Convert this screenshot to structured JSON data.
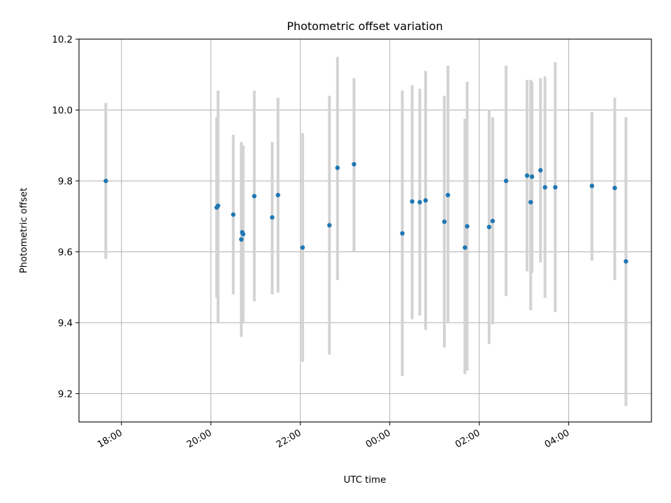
{
  "chart_data": {
    "type": "scatter",
    "title": "Photometric offset variation",
    "xlabel": "UTC time",
    "ylabel": "Photometric offset",
    "xlim_hours": [
      17.05,
      29.85
    ],
    "ylim": [
      9.12,
      10.2
    ],
    "grid": true,
    "x_ticks": [
      {
        "hours": 18,
        "label": "18:00"
      },
      {
        "hours": 20,
        "label": "20:00"
      },
      {
        "hours": 22,
        "label": "22:00"
      },
      {
        "hours": 24,
        "label": "00:00"
      },
      {
        "hours": 26,
        "label": "02:00"
      },
      {
        "hours": 28,
        "label": "04:00"
      }
    ],
    "y_ticks": [
      {
        "value": 9.2,
        "label": "9.2"
      },
      {
        "value": 9.4,
        "label": "9.4"
      },
      {
        "value": 9.6,
        "label": "9.6"
      },
      {
        "value": 9.8,
        "label": "9.8"
      },
      {
        "value": 10.0,
        "label": "10.0"
      },
      {
        "value": 10.2,
        "label": "10.2"
      }
    ],
    "colors": {
      "point": "#1f77b4",
      "errorbar": "#d3d3d3",
      "grid": "#b0b0b0"
    },
    "points": [
      {
        "x": 17.65,
        "y": 9.8,
        "lo": 9.58,
        "hi": 10.02
      },
      {
        "x": 20.13,
        "y": 9.725,
        "lo": 9.47,
        "hi": 9.98
      },
      {
        "x": 20.16,
        "y": 9.73,
        "lo": 9.4,
        "hi": 10.055
      },
      {
        "x": 20.5,
        "y": 9.705,
        "lo": 9.48,
        "hi": 9.93
      },
      {
        "x": 20.68,
        "y": 9.635,
        "lo": 9.36,
        "hi": 9.91
      },
      {
        "x": 20.7,
        "y": 9.655,
        "lo": 9.42,
        "hi": 9.885
      },
      {
        "x": 20.72,
        "y": 9.65,
        "lo": 9.4,
        "hi": 9.9
      },
      {
        "x": 20.97,
        "y": 9.757,
        "lo": 9.46,
        "hi": 10.055
      },
      {
        "x": 21.37,
        "y": 9.697,
        "lo": 9.48,
        "hi": 9.91
      },
      {
        "x": 21.5,
        "y": 9.76,
        "lo": 9.485,
        "hi": 10.035
      },
      {
        "x": 22.05,
        "y": 9.612,
        "lo": 9.29,
        "hi": 9.935
      },
      {
        "x": 22.65,
        "y": 9.675,
        "lo": 9.31,
        "hi": 10.04
      },
      {
        "x": 22.83,
        "y": 9.837,
        "lo": 9.52,
        "hi": 10.15
      },
      {
        "x": 23.2,
        "y": 9.847,
        "lo": 9.6,
        "hi": 10.09
      },
      {
        "x": 24.28,
        "y": 9.652,
        "lo": 9.25,
        "hi": 10.055
      },
      {
        "x": 24.5,
        "y": 9.742,
        "lo": 9.41,
        "hi": 10.07
      },
      {
        "x": 24.67,
        "y": 9.74,
        "lo": 9.42,
        "hi": 10.06
      },
      {
        "x": 24.8,
        "y": 9.745,
        "lo": 9.38,
        "hi": 10.11
      },
      {
        "x": 25.22,
        "y": 9.685,
        "lo": 9.33,
        "hi": 10.04
      },
      {
        "x": 25.3,
        "y": 9.76,
        "lo": 9.4,
        "hi": 10.125
      },
      {
        "x": 25.68,
        "y": 9.612,
        "lo": 9.255,
        "hi": 9.975
      },
      {
        "x": 25.73,
        "y": 9.672,
        "lo": 9.265,
        "hi": 10.08
      },
      {
        "x": 26.22,
        "y": 9.67,
        "lo": 9.34,
        "hi": 10.0
      },
      {
        "x": 26.3,
        "y": 9.687,
        "lo": 9.395,
        "hi": 9.98
      },
      {
        "x": 26.6,
        "y": 9.8,
        "lo": 9.475,
        "hi": 10.125
      },
      {
        "x": 27.07,
        "y": 9.815,
        "lo": 9.545,
        "hi": 10.085
      },
      {
        "x": 27.15,
        "y": 9.74,
        "lo": 9.435,
        "hi": 10.085
      },
      {
        "x": 27.18,
        "y": 9.812,
        "lo": 9.54,
        "hi": 10.08
      },
      {
        "x": 27.37,
        "y": 9.83,
        "lo": 9.57,
        "hi": 10.09
      },
      {
        "x": 27.47,
        "y": 9.782,
        "lo": 9.47,
        "hi": 10.095
      },
      {
        "x": 27.7,
        "y": 9.782,
        "lo": 9.43,
        "hi": 10.135
      },
      {
        "x": 28.52,
        "y": 9.786,
        "lo": 9.575,
        "hi": 9.995
      },
      {
        "x": 29.03,
        "y": 9.78,
        "lo": 9.52,
        "hi": 10.035
      },
      {
        "x": 29.28,
        "y": 9.573,
        "lo": 9.165,
        "hi": 9.98
      }
    ]
  }
}
